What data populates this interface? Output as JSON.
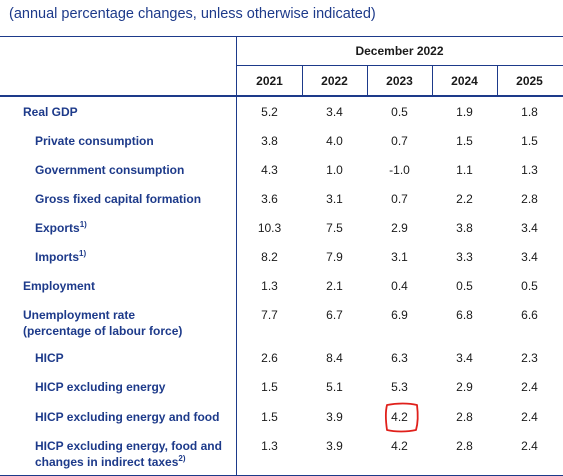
{
  "subtitle": "(annual percentage changes, unless otherwise indicated)",
  "group_header": "December 2022",
  "years": [
    "2021",
    "2022",
    "2023",
    "2024",
    "2025"
  ],
  "rows": [
    {
      "label": "Real GDP",
      "sup": "",
      "values": [
        "5.2",
        "3.4",
        "0.5",
        "1.9",
        "1.8"
      ]
    },
    {
      "label": "Private consumption",
      "sup": "",
      "values": [
        "3.8",
        "4.0",
        "0.7",
        "1.5",
        "1.5"
      ]
    },
    {
      "label": "Government consumption",
      "sup": "",
      "values": [
        "4.3",
        "1.0",
        "-1.0",
        "1.1",
        "1.3"
      ]
    },
    {
      "label": "Gross fixed capital formation",
      "sup": "",
      "values": [
        "3.6",
        "3.1",
        "0.7",
        "2.2",
        "2.8"
      ]
    },
    {
      "label": "Exports",
      "sup": "1)",
      "values": [
        "10.3",
        "7.5",
        "2.9",
        "3.8",
        "3.4"
      ]
    },
    {
      "label": "Imports",
      "sup": "1)",
      "values": [
        "8.2",
        "7.9",
        "3.1",
        "3.3",
        "3.4"
      ]
    },
    {
      "label": "Employment",
      "sup": "",
      "values": [
        "1.3",
        "2.1",
        "0.4",
        "0.5",
        "0.5"
      ]
    },
    {
      "label": "Unemployment rate",
      "label2": "(percentage of labour force)",
      "sup": "",
      "values": [
        "7.7",
        "6.7",
        "6.9",
        "6.8",
        "6.6"
      ]
    },
    {
      "label": "HICP",
      "sup": "",
      "values": [
        "2.6",
        "8.4",
        "6.3",
        "3.4",
        "2.3"
      ]
    },
    {
      "label": "HICP excluding energy",
      "sup": "",
      "values": [
        "1.5",
        "5.1",
        "5.3",
        "2.9",
        "2.4"
      ]
    },
    {
      "label": "HICP excluding energy and food",
      "sup": "",
      "values": [
        "1.5",
        "3.9",
        "4.2",
        "2.8",
        "2.4"
      ]
    },
    {
      "label": "HICP excluding energy, food and",
      "label2": "changes in indirect taxes",
      "sup": "2)",
      "values": [
        "1.3",
        "3.9",
        "4.2",
        "2.8",
        "2.4"
      ]
    }
  ],
  "colors": {
    "accent": "#1d3a8a",
    "highlight": "#e0201b"
  }
}
